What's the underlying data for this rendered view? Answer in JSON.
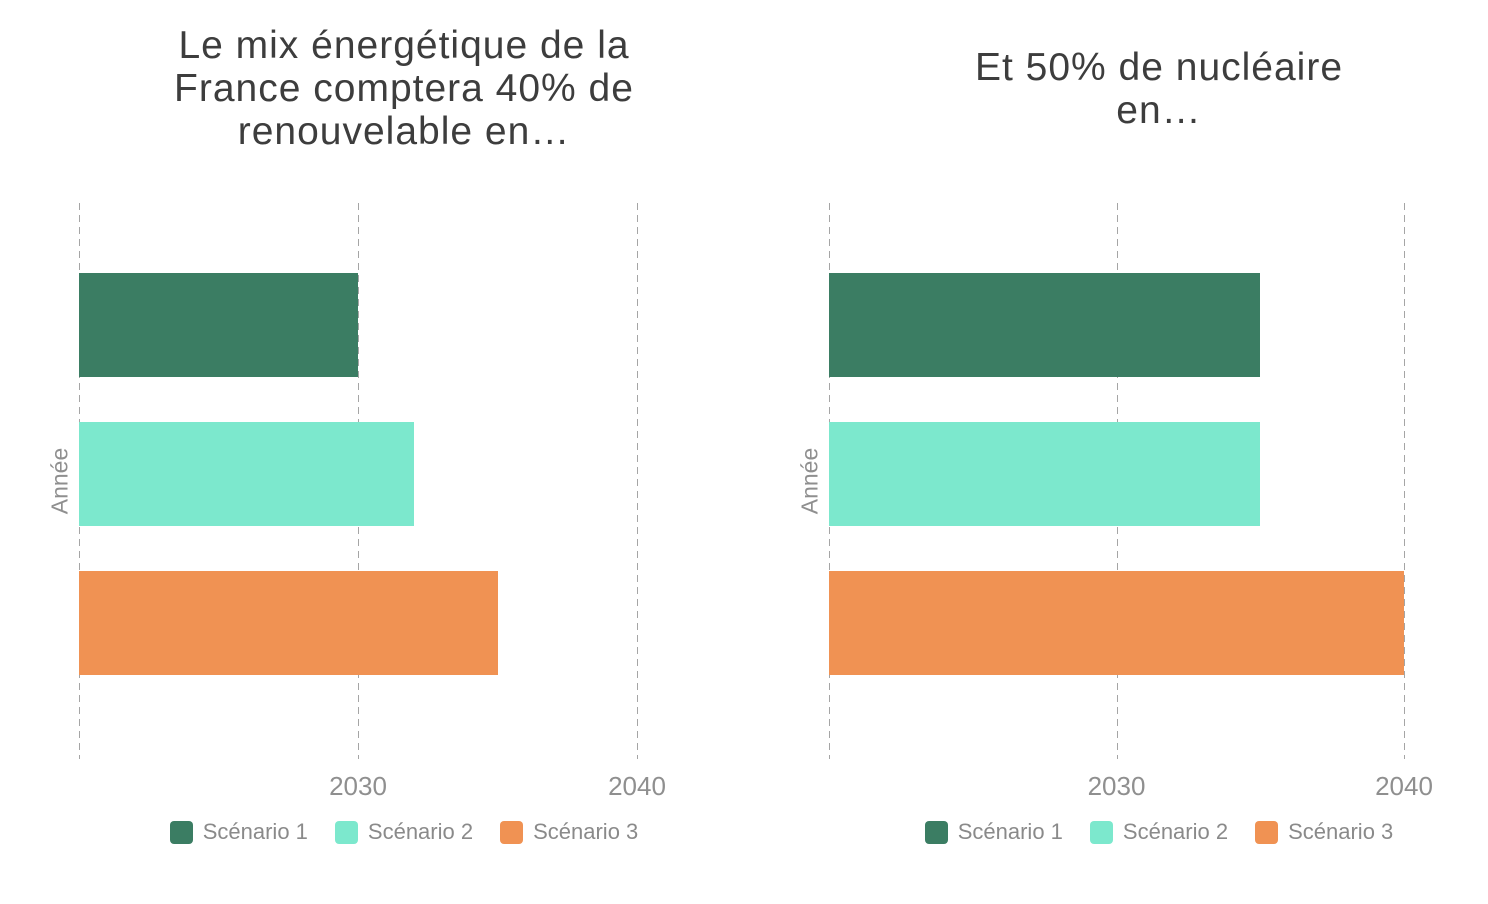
{
  "page": {
    "background": "#FFFFFF"
  },
  "theme": {
    "title_color": "#3D3D3D",
    "axis_text_color": "#8F8F8F",
    "legend_text_color": "#8A8A8A",
    "gridline_color": "#A5A5A5"
  },
  "chart_data": [
    {
      "type": "bar",
      "orientation": "horizontal",
      "title": "Le mix énergétique de la France comptera 40% de renouvelable en…",
      "title_display": "Le mix énergétique de la\nFrance comptera 40% de\nrenouvelable en…",
      "categories": [
        "Scénario 1",
        "Scénario 2",
        "Scénario 3"
      ],
      "values": [
        2030,
        2032,
        2035
      ],
      "colors": [
        "#3B7D63",
        "#7CE8CD",
        "#F09253"
      ],
      "xlabel": "",
      "ylabel": "Année",
      "xlim": [
        2020,
        2040
      ],
      "x_tick_labels": [
        "2030",
        "2040"
      ],
      "grid": "vertical-dashed",
      "legend_position": "bottom"
    },
    {
      "type": "bar",
      "orientation": "horizontal",
      "title": "Et 50% de nucléaire en…",
      "title_display": "Et 50% de nucléaire\nen…",
      "categories": [
        "Scénario 1",
        "Scénario 2",
        "Scénario 3"
      ],
      "values": [
        2035,
        2035,
        2040
      ],
      "colors": [
        "#3B7D63",
        "#7CE8CD",
        "#F09253"
      ],
      "xlabel": "",
      "ylabel": "Année",
      "xlim": [
        2020,
        2040
      ],
      "x_tick_labels": [
        "2030",
        "2040"
      ],
      "grid": "vertical-dashed",
      "legend_position": "bottom"
    }
  ]
}
